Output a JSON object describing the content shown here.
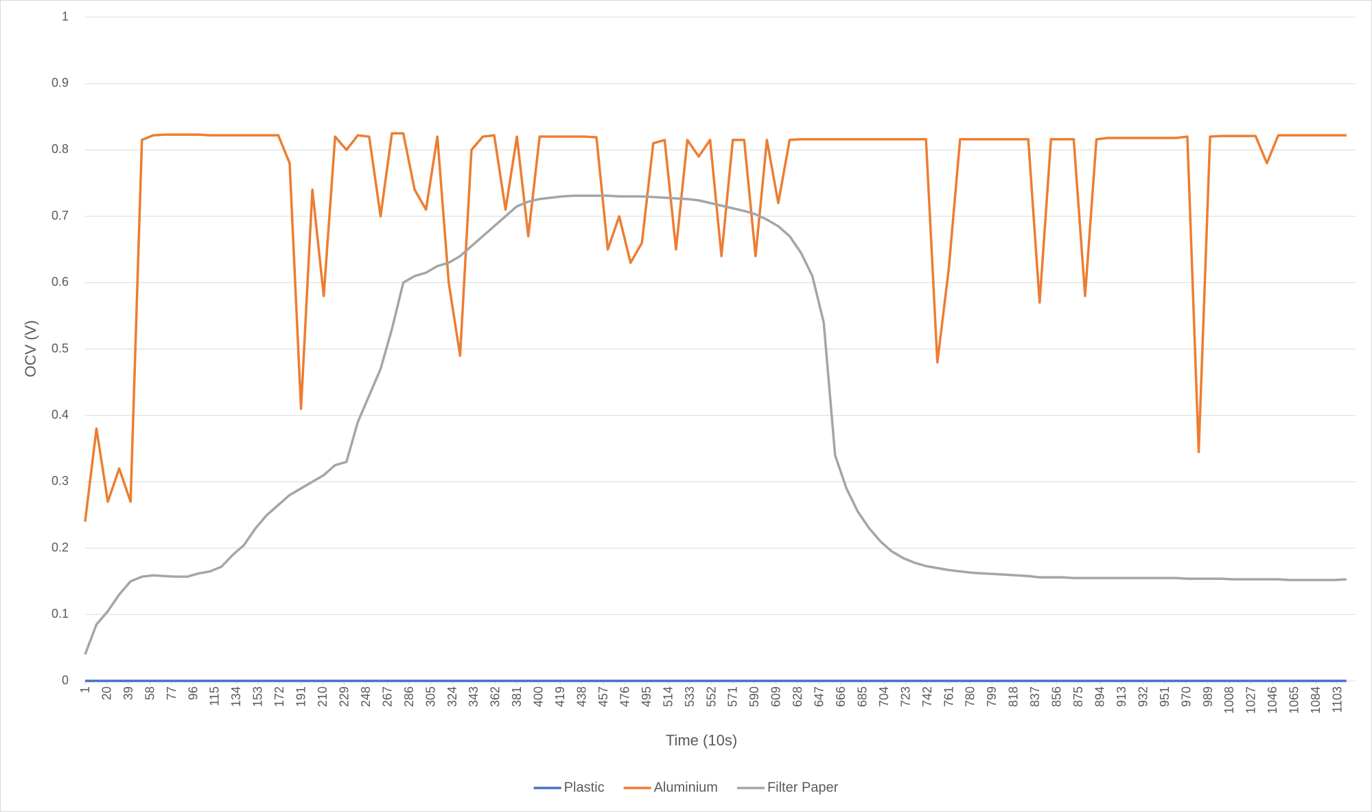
{
  "chart_data": {
    "type": "line",
    "x_label": "Time (10s)",
    "y_label": "OCV (V)",
    "x": [
      1,
      11,
      21,
      31,
      41,
      51,
      61,
      71,
      81,
      91,
      101,
      111,
      121,
      131,
      141,
      151,
      161,
      171,
      181,
      191,
      201,
      211,
      221,
      231,
      241,
      251,
      261,
      271,
      281,
      291,
      301,
      311,
      321,
      331,
      341,
      351,
      361,
      371,
      381,
      391,
      401,
      411,
      421,
      431,
      441,
      451,
      461,
      471,
      481,
      491,
      501,
      511,
      521,
      531,
      541,
      551,
      561,
      571,
      581,
      591,
      601,
      611,
      621,
      631,
      641,
      651,
      661,
      671,
      681,
      691,
      701,
      711,
      721,
      731,
      741,
      751,
      761,
      771,
      781,
      791,
      801,
      811,
      821,
      831,
      841,
      851,
      861,
      871,
      881,
      891,
      901,
      911,
      921,
      931,
      941,
      951,
      961,
      971,
      981,
      991,
      1001,
      1011,
      1021,
      1031,
      1041,
      1051,
      1061,
      1071,
      1081,
      1091,
      1101,
      1111
    ],
    "xlim": [
      1,
      1119
    ],
    "xticks": [
      1,
      20,
      39,
      58,
      77,
      96,
      115,
      134,
      153,
      172,
      191,
      210,
      229,
      248,
      267,
      286,
      305,
      324,
      343,
      362,
      381,
      400,
      419,
      438,
      457,
      476,
      495,
      514,
      533,
      552,
      571,
      590,
      609,
      628,
      647,
      666,
      685,
      704,
      723,
      742,
      761,
      780,
      799,
      818,
      837,
      856,
      875,
      894,
      913,
      932,
      951,
      970,
      989,
      1008,
      1027,
      1046,
      1065,
      1084,
      1103
    ],
    "ylim": [
      0,
      1
    ],
    "yticks": [
      0,
      0.1,
      0.2,
      0.3,
      0.4,
      0.5,
      0.6,
      0.7,
      0.8,
      0.9,
      1
    ],
    "grid": true,
    "legend": "bottom",
    "series": [
      {
        "name": "Plastic",
        "color": "#4472c4",
        "values": [
          0,
          0,
          0,
          0,
          0,
          0,
          0,
          0,
          0,
          0,
          0,
          0,
          0,
          0,
          0,
          0,
          0,
          0,
          0,
          0,
          0,
          0,
          0,
          0,
          0,
          0,
          0,
          0,
          0,
          0,
          0,
          0,
          0,
          0,
          0,
          0,
          0,
          0,
          0,
          0,
          0,
          0,
          0,
          0,
          0,
          0,
          0,
          0,
          0,
          0,
          0,
          0,
          0,
          0,
          0,
          0,
          0,
          0,
          0,
          0,
          0,
          0,
          0,
          0,
          0,
          0,
          0,
          0,
          0,
          0,
          0,
          0,
          0,
          0,
          0,
          0,
          0,
          0,
          0,
          0,
          0,
          0,
          0,
          0,
          0,
          0,
          0,
          0,
          0,
          0,
          0,
          0,
          0,
          0,
          0,
          0,
          0,
          0,
          0,
          0,
          0,
          0,
          0,
          0,
          0,
          0,
          0,
          0,
          0,
          0,
          0,
          0
        ]
      },
      {
        "name": "Aluminium",
        "color": "#ed7d31",
        "values": [
          0.24,
          0.38,
          0.27,
          0.32,
          0.27,
          0.815,
          0.822,
          0.823,
          0.823,
          0.823,
          0.823,
          0.822,
          0.822,
          0.822,
          0.822,
          0.822,
          0.822,
          0.822,
          0.78,
          0.41,
          0.74,
          0.58,
          0.82,
          0.8,
          0.822,
          0.82,
          0.7,
          0.825,
          0.825,
          0.74,
          0.71,
          0.82,
          0.6,
          0.49,
          0.8,
          0.82,
          0.822,
          0.71,
          0.82,
          0.67,
          0.82,
          0.82,
          0.82,
          0.82,
          0.82,
          0.819,
          0.65,
          0.7,
          0.63,
          0.66,
          0.81,
          0.815,
          0.65,
          0.815,
          0.79,
          0.815,
          0.64,
          0.815,
          0.815,
          0.64,
          0.815,
          0.72,
          0.815,
          0.816,
          0.816,
          0.816,
          0.816,
          0.816,
          0.816,
          0.816,
          0.816,
          0.816,
          0.816,
          0.816,
          0.816,
          0.48,
          0.62,
          0.816,
          0.816,
          0.816,
          0.816,
          0.816,
          0.816,
          0.816,
          0.57,
          0.816,
          0.816,
          0.816,
          0.58,
          0.816,
          0.818,
          0.818,
          0.818,
          0.818,
          0.818,
          0.818,
          0.818,
          0.82,
          0.345,
          0.82,
          0.821,
          0.821,
          0.821,
          0.821,
          0.78,
          0.822,
          0.822,
          0.822,
          0.822,
          0.822,
          0.822,
          0.822
        ]
      },
      {
        "name": "Filter Paper",
        "color": "#a5a5a5",
        "values": [
          0.04,
          0.085,
          0.105,
          0.13,
          0.15,
          0.157,
          0.159,
          0.158,
          0.157,
          0.157,
          0.162,
          0.165,
          0.172,
          0.19,
          0.205,
          0.23,
          0.25,
          0.265,
          0.28,
          0.29,
          0.3,
          0.31,
          0.325,
          0.33,
          0.39,
          0.43,
          0.47,
          0.53,
          0.6,
          0.61,
          0.615,
          0.625,
          0.63,
          0.64,
          0.655,
          0.67,
          0.685,
          0.7,
          0.715,
          0.722,
          0.726,
          0.728,
          0.73,
          0.731,
          0.731,
          0.731,
          0.731,
          0.73,
          0.73,
          0.73,
          0.729,
          0.728,
          0.727,
          0.726,
          0.724,
          0.72,
          0.716,
          0.712,
          0.708,
          0.703,
          0.695,
          0.685,
          0.67,
          0.645,
          0.61,
          0.54,
          0.34,
          0.29,
          0.255,
          0.23,
          0.21,
          0.195,
          0.185,
          0.178,
          0.173,
          0.17,
          0.167,
          0.165,
          0.163,
          0.162,
          0.161,
          0.16,
          0.159,
          0.158,
          0.156,
          0.156,
          0.156,
          0.155,
          0.155,
          0.155,
          0.155,
          0.155,
          0.155,
          0.155,
          0.155,
          0.155,
          0.155,
          0.154,
          0.154,
          0.154,
          0.154,
          0.153,
          0.153,
          0.153,
          0.153,
          0.153,
          0.152,
          0.152,
          0.152,
          0.152,
          0.152,
          0.153
        ]
      }
    ]
  }
}
